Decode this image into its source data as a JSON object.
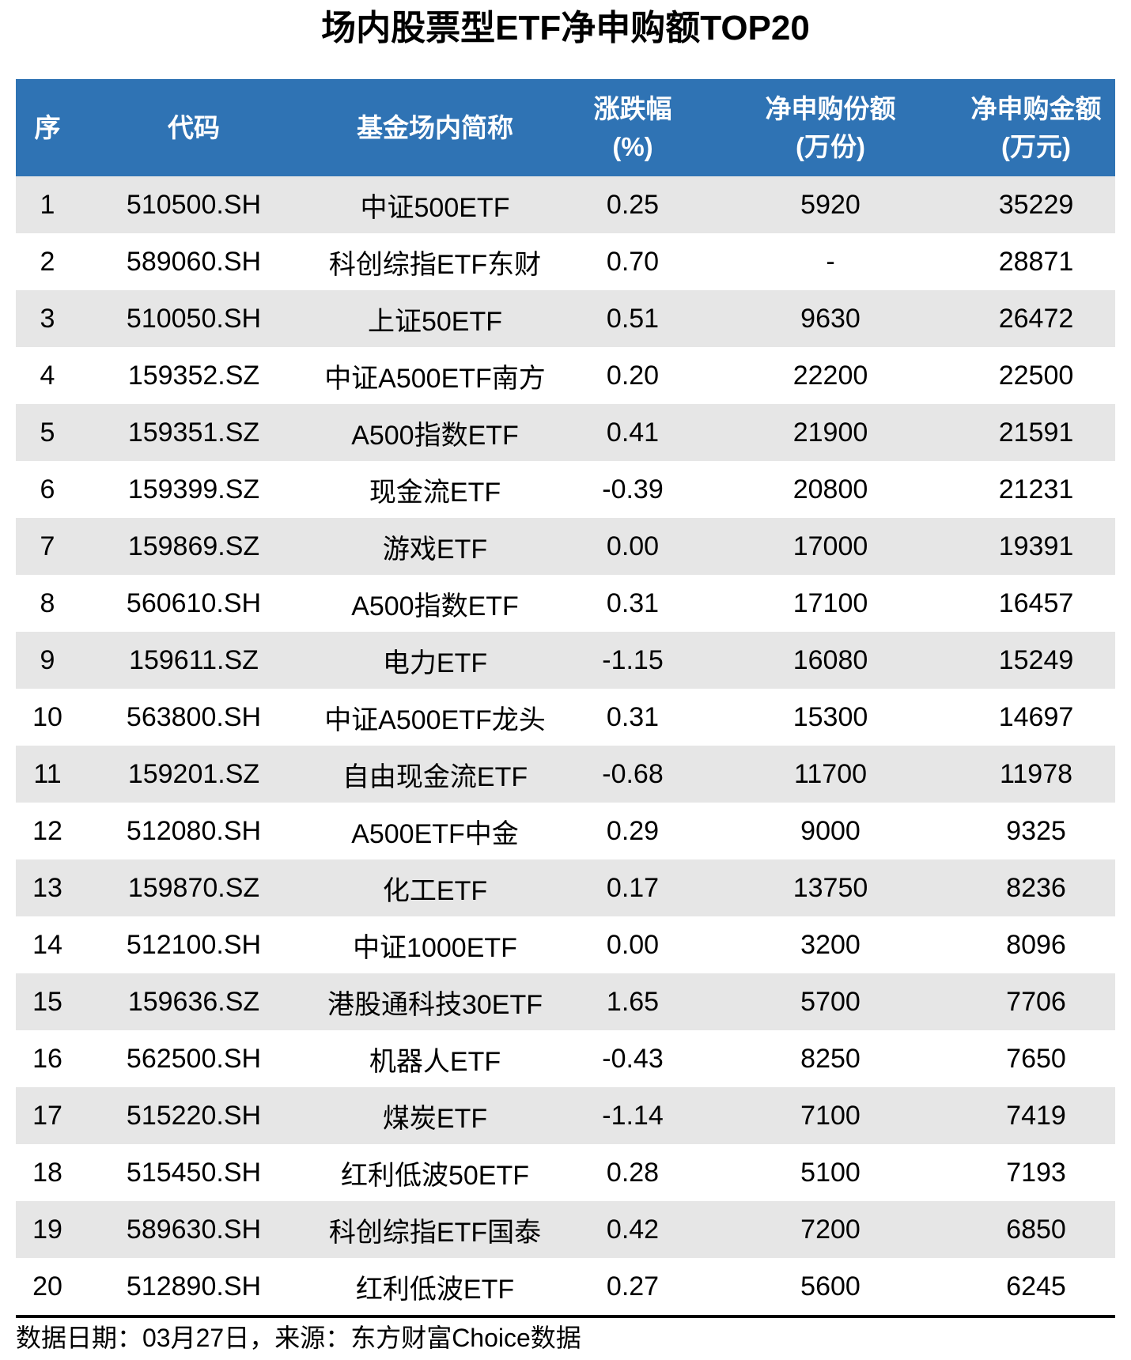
{
  "title": "场内股票型ETF净申购额TOP20",
  "chart_data": {
    "type": "table",
    "title": "场内股票型ETF净申购额TOP20",
    "columns": [
      {
        "line1": "序",
        "line2": ""
      },
      {
        "line1": "代码",
        "line2": ""
      },
      {
        "line1": "基金场内简称",
        "line2": ""
      },
      {
        "line1": "涨跌幅",
        "line2": "(%)"
      },
      {
        "line1": "净申购份额",
        "line2": "(万份)"
      },
      {
        "line1": "净申购金额",
        "line2": "(万元)"
      }
    ],
    "rows": [
      {
        "rank": "1",
        "code": "510500.SH",
        "name": "中证500ETF",
        "change_pct": "0.25",
        "net_shares": "5920",
        "net_amount": "35229"
      },
      {
        "rank": "2",
        "code": "589060.SH",
        "name": "科创综指ETF东财",
        "change_pct": "0.70",
        "net_shares": "-",
        "net_amount": "28871"
      },
      {
        "rank": "3",
        "code": "510050.SH",
        "name": "上证50ETF",
        "change_pct": "0.51",
        "net_shares": "9630",
        "net_amount": "26472"
      },
      {
        "rank": "4",
        "code": "159352.SZ",
        "name": "中证A500ETF南方",
        "change_pct": "0.20",
        "net_shares": "22200",
        "net_amount": "22500"
      },
      {
        "rank": "5",
        "code": "159351.SZ",
        "name": "A500指数ETF",
        "change_pct": "0.41",
        "net_shares": "21900",
        "net_amount": "21591"
      },
      {
        "rank": "6",
        "code": "159399.SZ",
        "name": "现金流ETF",
        "change_pct": "-0.39",
        "net_shares": "20800",
        "net_amount": "21231"
      },
      {
        "rank": "7",
        "code": "159869.SZ",
        "name": "游戏ETF",
        "change_pct": "0.00",
        "net_shares": "17000",
        "net_amount": "19391"
      },
      {
        "rank": "8",
        "code": "560610.SH",
        "name": "A500指数ETF",
        "change_pct": "0.31",
        "net_shares": "17100",
        "net_amount": "16457"
      },
      {
        "rank": "9",
        "code": "159611.SZ",
        "name": "电力ETF",
        "change_pct": "-1.15",
        "net_shares": "16080",
        "net_amount": "15249"
      },
      {
        "rank": "10",
        "code": "563800.SH",
        "name": "中证A500ETF龙头",
        "change_pct": "0.31",
        "net_shares": "15300",
        "net_amount": "14697"
      },
      {
        "rank": "11",
        "code": "159201.SZ",
        "name": "自由现金流ETF",
        "change_pct": "-0.68",
        "net_shares": "11700",
        "net_amount": "11978"
      },
      {
        "rank": "12",
        "code": "512080.SH",
        "name": "A500ETF中金",
        "change_pct": "0.29",
        "net_shares": "9000",
        "net_amount": "9325"
      },
      {
        "rank": "13",
        "code": "159870.SZ",
        "name": "化工ETF",
        "change_pct": "0.17",
        "net_shares": "13750",
        "net_amount": "8236"
      },
      {
        "rank": "14",
        "code": "512100.SH",
        "name": "中证1000ETF",
        "change_pct": "0.00",
        "net_shares": "3200",
        "net_amount": "8096"
      },
      {
        "rank": "15",
        "code": "159636.SZ",
        "name": "港股通科技30ETF",
        "change_pct": "1.65",
        "net_shares": "5700",
        "net_amount": "7706"
      },
      {
        "rank": "16",
        "code": "562500.SH",
        "name": "机器人ETF",
        "change_pct": "-0.43",
        "net_shares": "8250",
        "net_amount": "7650"
      },
      {
        "rank": "17",
        "code": "515220.SH",
        "name": "煤炭ETF",
        "change_pct": "-1.14",
        "net_shares": "7100",
        "net_amount": "7419"
      },
      {
        "rank": "18",
        "code": "515450.SH",
        "name": "红利低波50ETF",
        "change_pct": "0.28",
        "net_shares": "5100",
        "net_amount": "7193"
      },
      {
        "rank": "19",
        "code": "589630.SH",
        "name": "科创综指ETF国泰",
        "change_pct": "0.42",
        "net_shares": "7200",
        "net_amount": "6850"
      },
      {
        "rank": "20",
        "code": "512890.SH",
        "name": "红利低波ETF",
        "change_pct": "0.27",
        "net_shares": "5600",
        "net_amount": "6245"
      }
    ]
  },
  "footer": {
    "note": "数据日期：03月27日，来源：东方财富Choice数据"
  },
  "colors": {
    "header_bg": "#2F73B4",
    "header_text": "#FFFFFF",
    "row_alt_bg": "#E6E6E6",
    "row_bg": "#FFFFFF",
    "body_text": "#000000",
    "divider": "#000000"
  }
}
